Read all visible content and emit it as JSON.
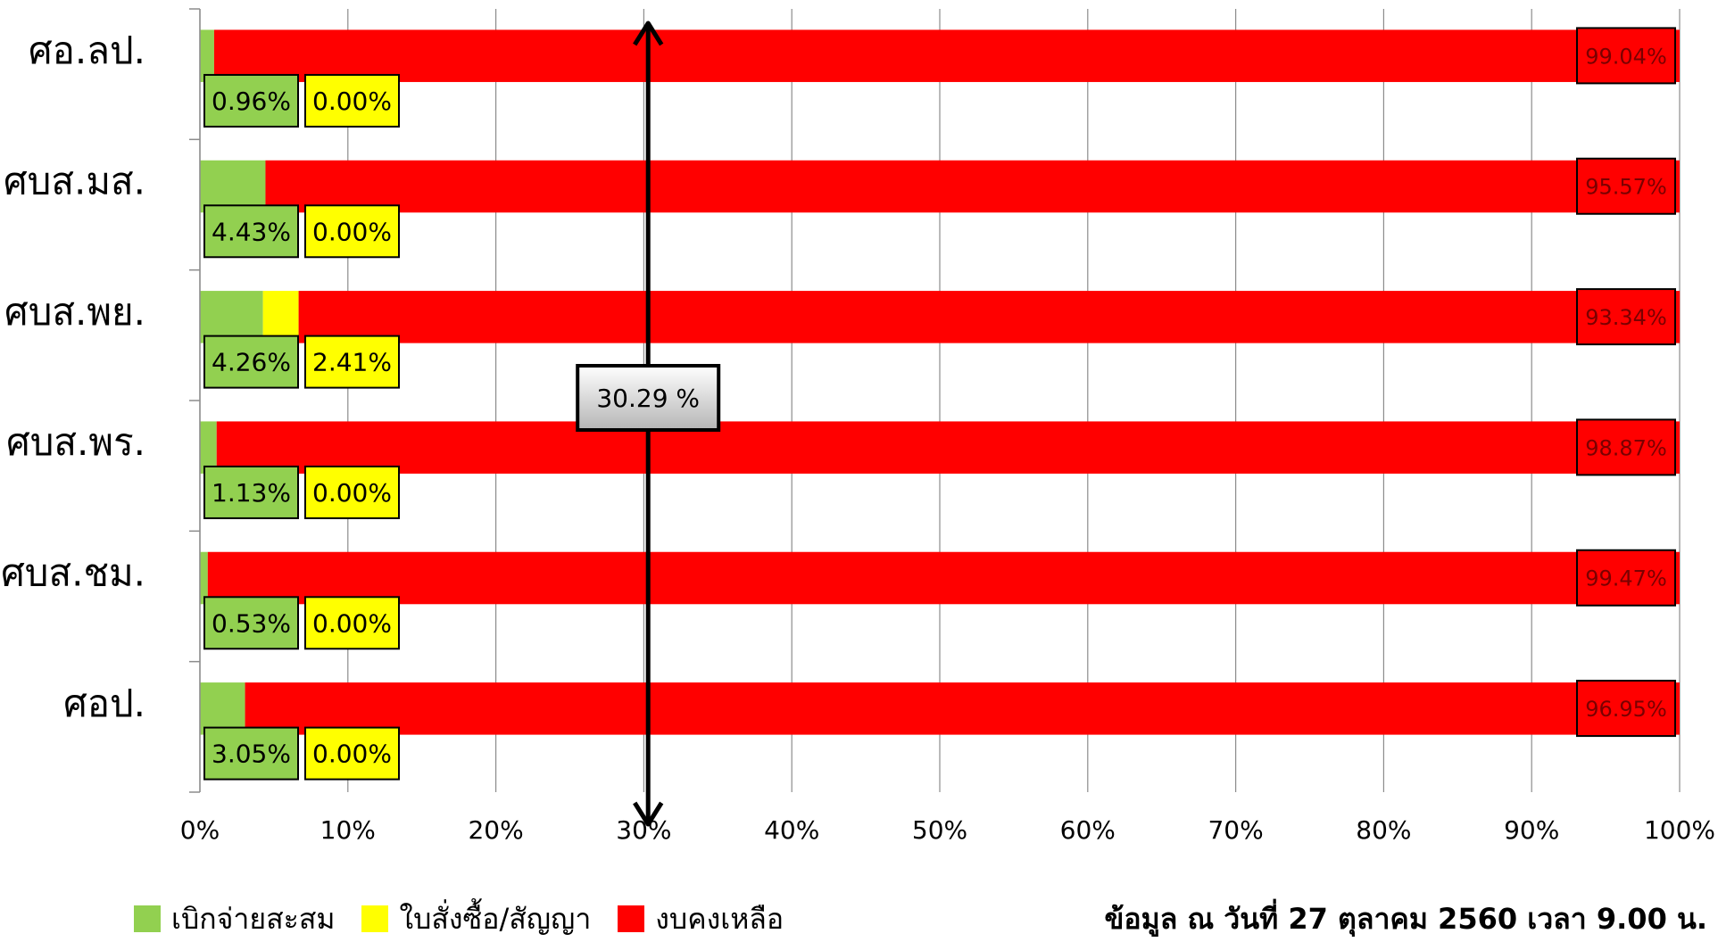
{
  "chart_data": {
    "type": "bar",
    "orientation": "horizontal",
    "stacked": "percent",
    "categories": [
      "ศอ.ลป.",
      "ศบส.มส.",
      "ศบส.พย.",
      "ศบส.พร.",
      "ศบส.ชม.",
      "ศอป."
    ],
    "series": [
      {
        "name": "เบิกจ่ายสะสม",
        "color": "#92d050",
        "values": [
          0.96,
          4.43,
          4.26,
          1.13,
          0.53,
          3.05
        ],
        "labels": [
          "0.96%",
          "4.43%",
          "4.26%",
          "1.13%",
          "0.53%",
          "3.05%"
        ]
      },
      {
        "name": "ใบสั่งซื้อ/สัญญา",
        "color": "#ffff00",
        "values": [
          0.0,
          0.0,
          2.41,
          0.0,
          0.0,
          0.0
        ],
        "labels": [
          "0.00%",
          "0.00%",
          "2.41%",
          "0.00%",
          "0.00%",
          "0.00%"
        ]
      },
      {
        "name": "งบคงเหลือ",
        "color": "#ff0000",
        "values": [
          99.04,
          95.57,
          93.34,
          98.87,
          99.47,
          96.95
        ],
        "labels": [
          "99.04%",
          "95.57%",
          "93.34%",
          "98.87%",
          "99.47%",
          "96.95%"
        ]
      }
    ],
    "xlim": [
      0,
      100
    ],
    "xticks": [
      "0%",
      "10%",
      "20%",
      "30%",
      "40%",
      "50%",
      "60%",
      "70%",
      "80%",
      "90%",
      "100%"
    ],
    "grid": true,
    "legend_position": "bottom-left",
    "annotation": {
      "value": 30.29,
      "label": "30.29 %"
    }
  },
  "footnote": "ข้อมูล ณ วันที่ 27 ตุลาคม 2560 เวลา 9.00 น."
}
